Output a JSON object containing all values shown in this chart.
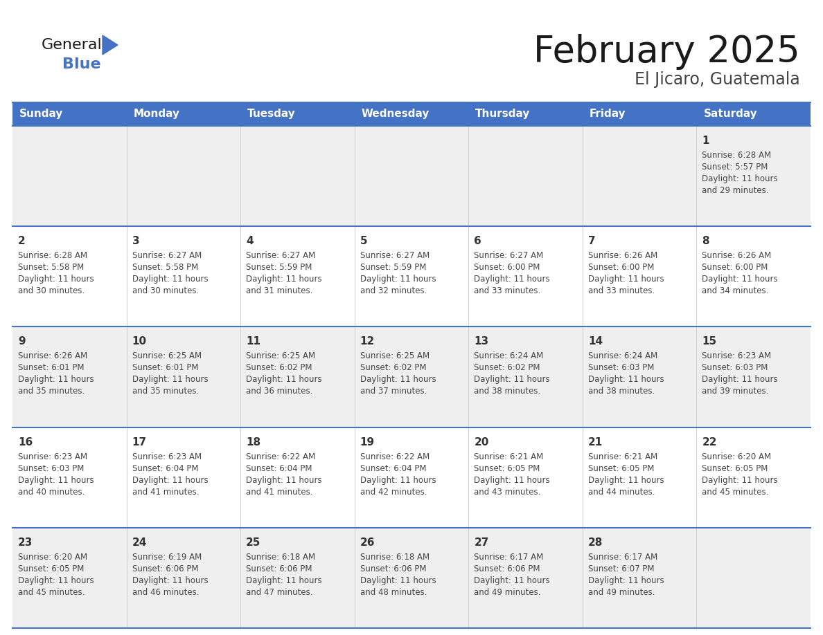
{
  "title": "February 2025",
  "subtitle": "El Jicaro, Guatemala",
  "header_color": "#4472C4",
  "header_text_color": "#FFFFFF",
  "bg_color": "#FFFFFF",
  "cell_bg_week1": "#EFEFEF",
  "cell_bg_week2": "#FFFFFF",
  "cell_bg_week3": "#EFEFEF",
  "cell_bg_week4": "#FFFFFF",
  "cell_bg_week5": "#EFEFEF",
  "day_headers": [
    "Sunday",
    "Monday",
    "Tuesday",
    "Wednesday",
    "Thursday",
    "Friday",
    "Saturday"
  ],
  "title_color": "#1a1a1a",
  "subtitle_color": "#444444",
  "number_color": "#333333",
  "info_color": "#444444",
  "divider_color": "#4472C4",
  "logo_general_color": "#1a1a1a",
  "logo_blue_color": "#4472C4",
  "calendar_data": [
    [
      null,
      null,
      null,
      null,
      null,
      null,
      {
        "day": "1",
        "sunrise": "6:28 AM",
        "sunset": "5:57 PM",
        "daylight_h": "11 hours",
        "daylight_m": "and 29 minutes."
      }
    ],
    [
      {
        "day": "2",
        "sunrise": "6:28 AM",
        "sunset": "5:58 PM",
        "daylight_h": "11 hours",
        "daylight_m": "and 30 minutes."
      },
      {
        "day": "3",
        "sunrise": "6:27 AM",
        "sunset": "5:58 PM",
        "daylight_h": "11 hours",
        "daylight_m": "and 30 minutes."
      },
      {
        "day": "4",
        "sunrise": "6:27 AM",
        "sunset": "5:59 PM",
        "daylight_h": "11 hours",
        "daylight_m": "and 31 minutes."
      },
      {
        "day": "5",
        "sunrise": "6:27 AM",
        "sunset": "5:59 PM",
        "daylight_h": "11 hours",
        "daylight_m": "and 32 minutes."
      },
      {
        "day": "6",
        "sunrise": "6:27 AM",
        "sunset": "6:00 PM",
        "daylight_h": "11 hours",
        "daylight_m": "and 33 minutes."
      },
      {
        "day": "7",
        "sunrise": "6:26 AM",
        "sunset": "6:00 PM",
        "daylight_h": "11 hours",
        "daylight_m": "and 33 minutes."
      },
      {
        "day": "8",
        "sunrise": "6:26 AM",
        "sunset": "6:00 PM",
        "daylight_h": "11 hours",
        "daylight_m": "and 34 minutes."
      }
    ],
    [
      {
        "day": "9",
        "sunrise": "6:26 AM",
        "sunset": "6:01 PM",
        "daylight_h": "11 hours",
        "daylight_m": "and 35 minutes."
      },
      {
        "day": "10",
        "sunrise": "6:25 AM",
        "sunset": "6:01 PM",
        "daylight_h": "11 hours",
        "daylight_m": "and 35 minutes."
      },
      {
        "day": "11",
        "sunrise": "6:25 AM",
        "sunset": "6:02 PM",
        "daylight_h": "11 hours",
        "daylight_m": "and 36 minutes."
      },
      {
        "day": "12",
        "sunrise": "6:25 AM",
        "sunset": "6:02 PM",
        "daylight_h": "11 hours",
        "daylight_m": "and 37 minutes."
      },
      {
        "day": "13",
        "sunrise": "6:24 AM",
        "sunset": "6:02 PM",
        "daylight_h": "11 hours",
        "daylight_m": "and 38 minutes."
      },
      {
        "day": "14",
        "sunrise": "6:24 AM",
        "sunset": "6:03 PM",
        "daylight_h": "11 hours",
        "daylight_m": "and 38 minutes."
      },
      {
        "day": "15",
        "sunrise": "6:23 AM",
        "sunset": "6:03 PM",
        "daylight_h": "11 hours",
        "daylight_m": "and 39 minutes."
      }
    ],
    [
      {
        "day": "16",
        "sunrise": "6:23 AM",
        "sunset": "6:03 PM",
        "daylight_h": "11 hours",
        "daylight_m": "and 40 minutes."
      },
      {
        "day": "17",
        "sunrise": "6:23 AM",
        "sunset": "6:04 PM",
        "daylight_h": "11 hours",
        "daylight_m": "and 41 minutes."
      },
      {
        "day": "18",
        "sunrise": "6:22 AM",
        "sunset": "6:04 PM",
        "daylight_h": "11 hours",
        "daylight_m": "and 41 minutes."
      },
      {
        "day": "19",
        "sunrise": "6:22 AM",
        "sunset": "6:04 PM",
        "daylight_h": "11 hours",
        "daylight_m": "and 42 minutes."
      },
      {
        "day": "20",
        "sunrise": "6:21 AM",
        "sunset": "6:05 PM",
        "daylight_h": "11 hours",
        "daylight_m": "and 43 minutes."
      },
      {
        "day": "21",
        "sunrise": "6:21 AM",
        "sunset": "6:05 PM",
        "daylight_h": "11 hours",
        "daylight_m": "and 44 minutes."
      },
      {
        "day": "22",
        "sunrise": "6:20 AM",
        "sunset": "6:05 PM",
        "daylight_h": "11 hours",
        "daylight_m": "and 45 minutes."
      }
    ],
    [
      {
        "day": "23",
        "sunrise": "6:20 AM",
        "sunset": "6:05 PM",
        "daylight_h": "11 hours",
        "daylight_m": "and 45 minutes."
      },
      {
        "day": "24",
        "sunrise": "6:19 AM",
        "sunset": "6:06 PM",
        "daylight_h": "11 hours",
        "daylight_m": "and 46 minutes."
      },
      {
        "day": "25",
        "sunrise": "6:18 AM",
        "sunset": "6:06 PM",
        "daylight_h": "11 hours",
        "daylight_m": "and 47 minutes."
      },
      {
        "day": "26",
        "sunrise": "6:18 AM",
        "sunset": "6:06 PM",
        "daylight_h": "11 hours",
        "daylight_m": "and 48 minutes."
      },
      {
        "day": "27",
        "sunrise": "6:17 AM",
        "sunset": "6:06 PM",
        "daylight_h": "11 hours",
        "daylight_m": "and 49 minutes."
      },
      {
        "day": "28",
        "sunrise": "6:17 AM",
        "sunset": "6:07 PM",
        "daylight_h": "11 hours",
        "daylight_m": "and 49 minutes."
      },
      null
    ]
  ],
  "row_bg_colors": [
    "#EFEFEF",
    "#FFFFFF",
    "#EFEFEF",
    "#FFFFFF",
    "#EFEFEF"
  ]
}
